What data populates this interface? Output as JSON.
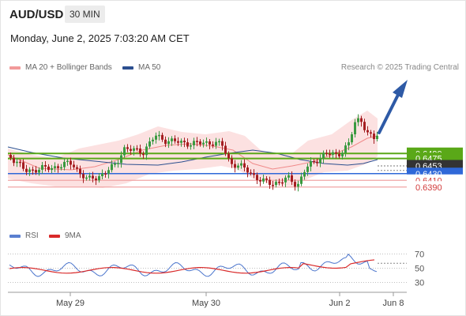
{
  "header": {
    "symbol": "AUD/USD",
    "timeframe": "30 MIN",
    "datetime": "Monday, June 2, 2025 7:03:20 AM CET"
  },
  "legend": {
    "ma_bollinger": "MA 20 + Bollinger Bands",
    "ma50": "MA 50",
    "credit": "Research © 2025 Trading Central"
  },
  "rsi_legend": {
    "rsi": "RSI",
    "ma": "9MA"
  },
  "colors": {
    "bullish": "#3a9a40",
    "bearish": "#a51e22",
    "bollinger_fill": "#fcdede",
    "ma20": "#f08a8a",
    "ma50": "#2c4f8f",
    "resistance": "#5aa818",
    "support": "#f0a5a5",
    "pivot": "#2f68d8",
    "current": "#333333",
    "arrow": "#2e5aa6",
    "rsi": "#4a74cc",
    "rsi_ma": "#d92a2a"
  },
  "levels": [
    {
      "value": "0.6490",
      "kind": "resistance"
    },
    {
      "value": "0.6475",
      "kind": "resistance"
    },
    {
      "value": "0.6453",
      "kind": "current"
    },
    {
      "value": "0.6430",
      "kind": "pivot"
    },
    {
      "value": "0.6410",
      "kind": "support"
    },
    {
      "value": "0.6390",
      "kind": "support"
    }
  ],
  "rsi_ticks": [
    "70",
    "50",
    "30"
  ],
  "x_ticks": [
    "May 29",
    "May 30",
    "Jun 2",
    "Jun 8"
  ],
  "chart_data": {
    "type": "candlestick",
    "series": [
      {
        "name": "MA 20 + Bollinger Bands"
      },
      {
        "name": "MA 50"
      },
      {
        "name": "RSI"
      },
      {
        "name": "9MA"
      }
    ],
    "price_levels": [
      0.649,
      0.6475,
      0.6453,
      0.643,
      0.641,
      0.639
    ],
    "current_price": 0.6453,
    "rsi_levels": [
      70,
      50,
      30
    ],
    "forecast": "up toward 0.6490",
    "x_labels": [
      "May 29",
      "May 30",
      "Jun 2",
      "Jun 8"
    ]
  }
}
